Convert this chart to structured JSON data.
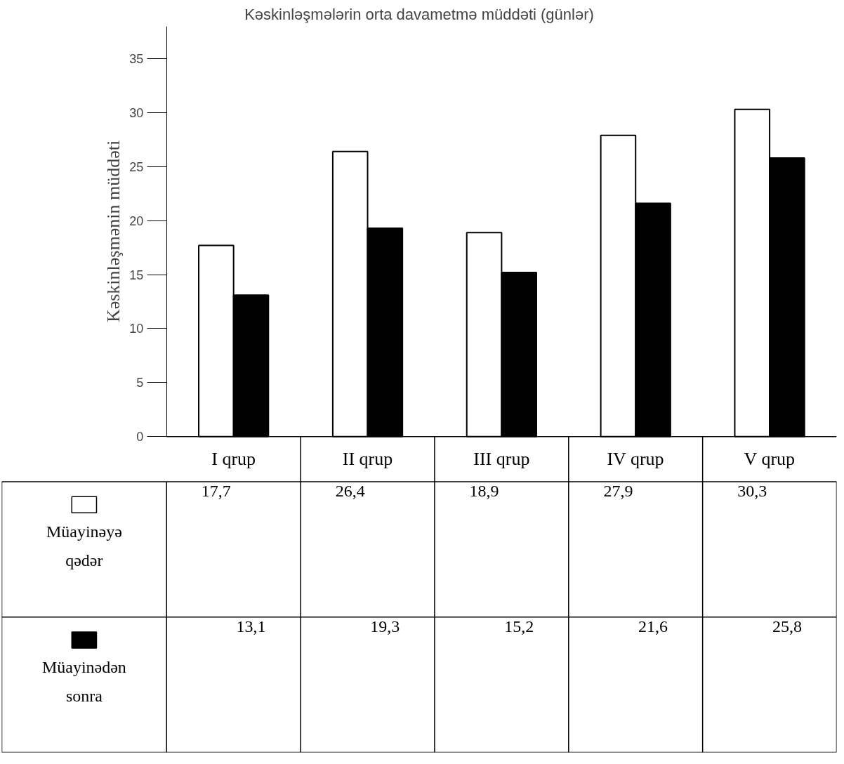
{
  "chart_data": {
    "type": "bar",
    "title": "Kəskinləşmələrin orta davametmə müddəti (günlər)",
    "ylabel": "Kəskinləşmənin müddəti",
    "categories": [
      "I qrup",
      "II qrup",
      "III qrup",
      "IV qrup",
      "V qrup"
    ],
    "series": [
      {
        "name": "Müayinəyə qədər",
        "color": "#ffffff",
        "values": [
          17.7,
          26.4,
          18.9,
          27.9,
          30.3
        ],
        "value_labels": [
          "17,7",
          "26,4",
          "18,9",
          "27,9",
          "30,3"
        ]
      },
      {
        "name": "Müayinədən sonra",
        "color": "#000000",
        "values": [
          13.1,
          19.3,
          15.2,
          21.6,
          25.8
        ],
        "value_labels": [
          "13,1",
          "19,3",
          "15,2",
          "21,6",
          "25,8"
        ]
      }
    ],
    "ylim": [
      0,
      38
    ],
    "yticks": [
      0,
      5,
      10,
      15,
      20,
      25,
      30,
      35
    ],
    "grid": false,
    "legend": "bottom"
  }
}
